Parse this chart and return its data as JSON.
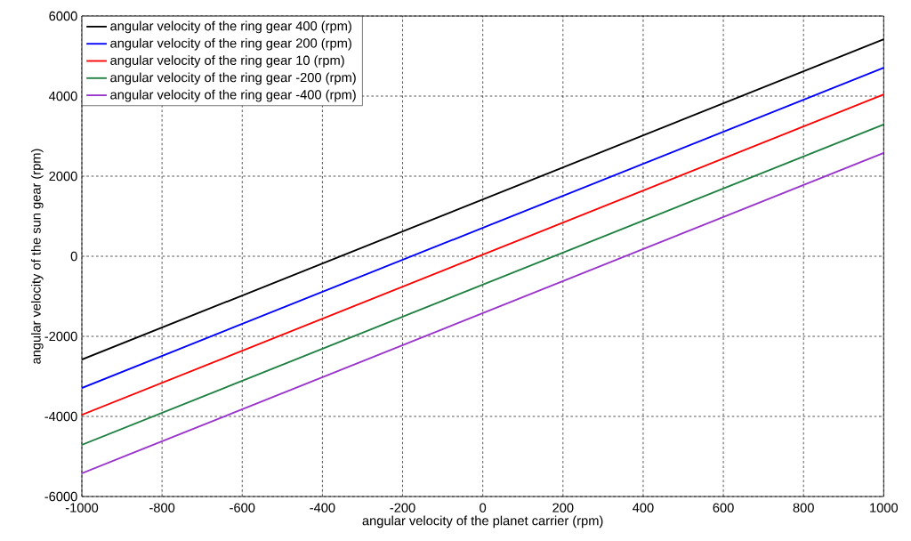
{
  "chart_data": {
    "type": "line",
    "xlabel": "angular velocity of  the planet carrier (rpm)",
    "ylabel": "angular velocity of the sun gear (rpm)",
    "x": [
      -1000,
      1000
    ],
    "series": [
      {
        "name": "angular velocity of the ring gear 400 (rpm)",
        "color": "#000000",
        "values": [
          -2580,
          5420
        ]
      },
      {
        "name": "angular velocity of the ring gear 200 (rpm)",
        "color": "#0000ff",
        "values": [
          -3290,
          4710
        ]
      },
      {
        "name": "angular velocity of the ring gear 10 (rpm)",
        "color": "#ff0000",
        "values": [
          -3960,
          4040
        ]
      },
      {
        "name": "angular velocity of the ring gear -200 (rpm)",
        "color": "#1e8040",
        "values": [
          -4710,
          3290
        ]
      },
      {
        "name": "angular velocity of the ring gear -400 (rpm)",
        "color": "#9933cc",
        "values": [
          -5420,
          2580
        ]
      }
    ],
    "xlim": [
      -1000,
      1000
    ],
    "ylim": [
      -6000,
      6000
    ],
    "xticks": [
      -1000,
      -800,
      -600,
      -400,
      -200,
      0,
      200,
      400,
      600,
      800,
      1000
    ],
    "yticks": [
      -6000,
      -4000,
      -2000,
      0,
      2000,
      4000,
      6000
    ],
    "grid": true,
    "legend": "top left",
    "marker": "none",
    "line_style": "solid"
  }
}
